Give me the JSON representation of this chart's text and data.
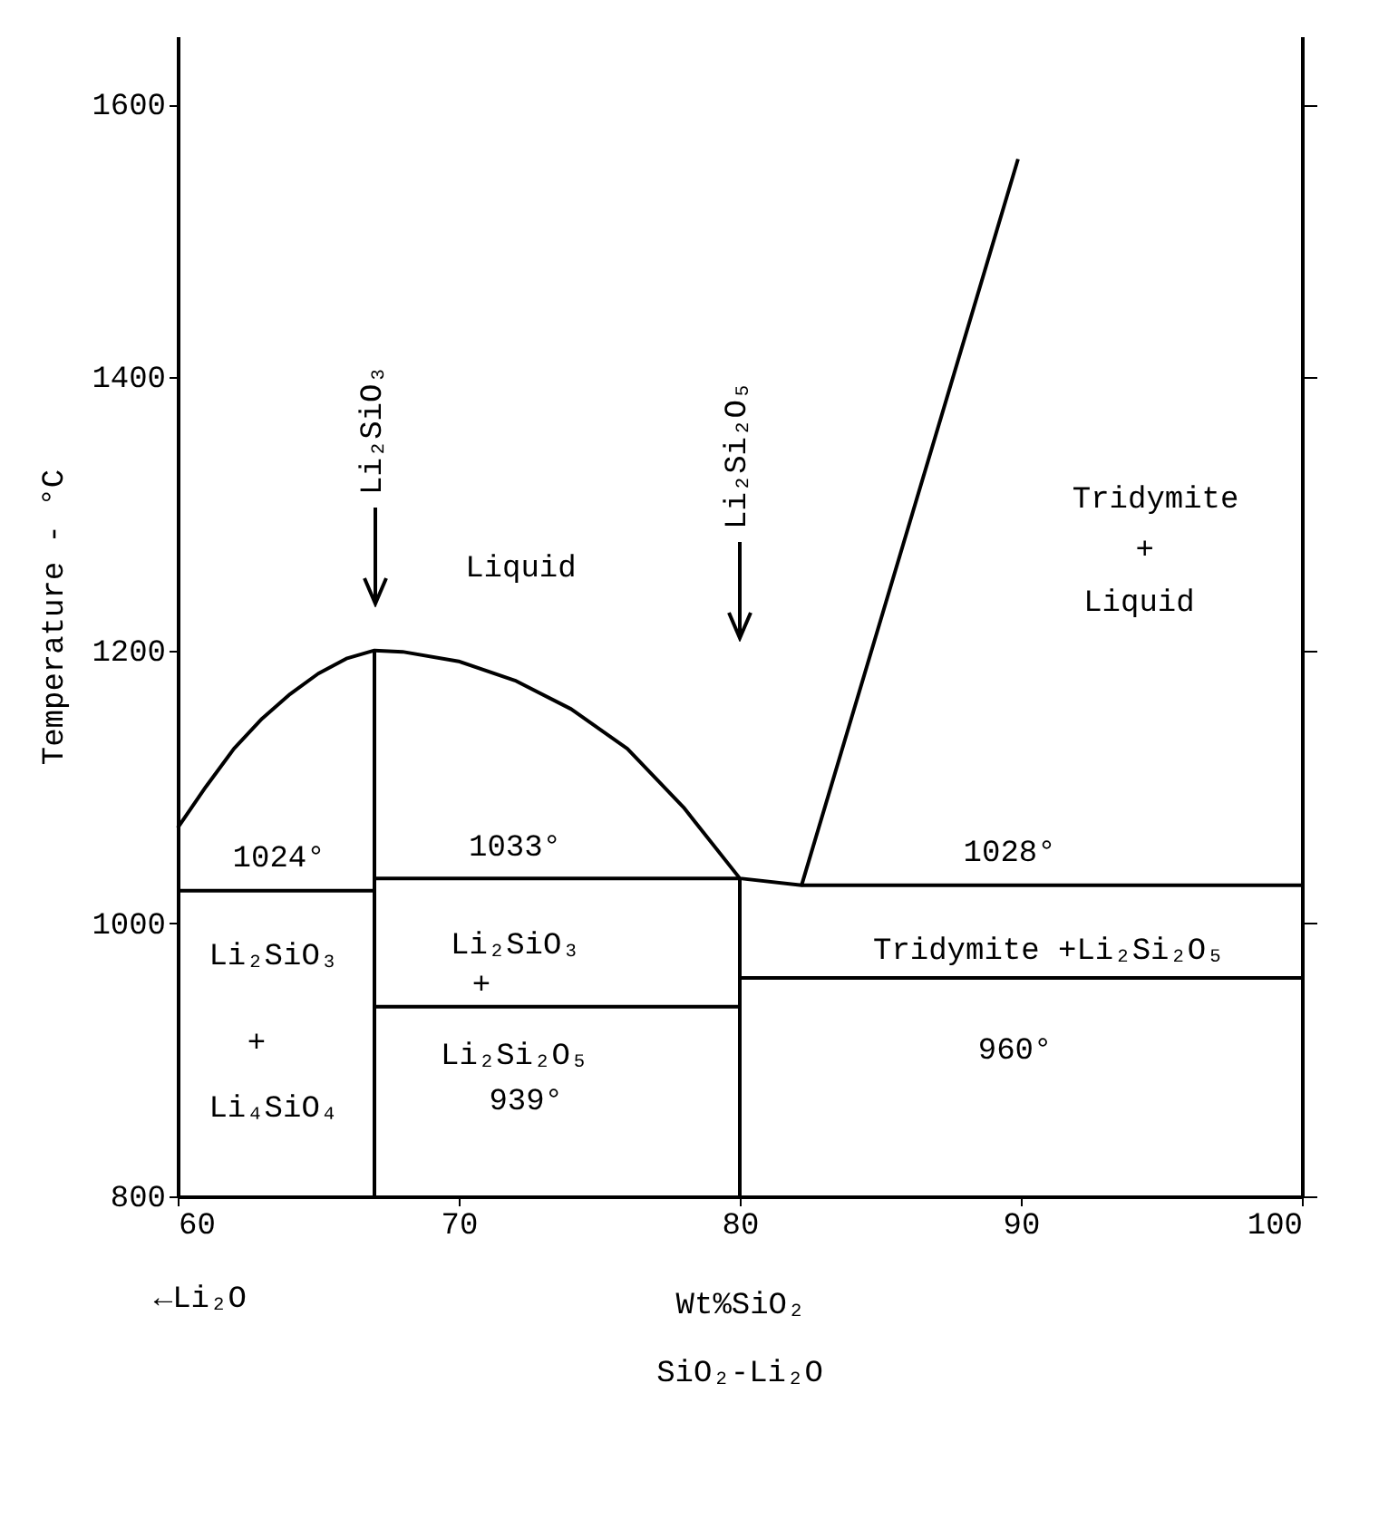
{
  "chart_data": {
    "type": "line",
    "title": "SiO₂-Li₂O",
    "xlabel": "Wt%SiO₂",
    "ylabel": "Temperature - °C",
    "xlim": [
      60,
      100
    ],
    "xticks": [
      60,
      70,
      80,
      90,
      100
    ],
    "ylim": [
      800,
      1650
    ],
    "yticks": [
      800,
      1000,
      1200,
      1400,
      1600
    ],
    "series": [
      {
        "color": "#000000",
        "x": [
          60,
          61,
          62,
          63,
          64,
          65,
          66,
          67,
          68,
          70,
          72,
          74,
          76,
          78,
          80,
          82.2,
          89.9
        ],
        "values": [
          1070,
          1100,
          1128,
          1150,
          1168,
          1183,
          1194,
          1200,
          1199,
          1192,
          1178,
          1157,
          1128,
          1085,
          1033,
          1028,
          1560
        ]
      },
      {
        "color": "#000000",
        "x": [
          60,
          67
        ],
        "values": [
          1024,
          1024
        ]
      },
      {
        "color": "#000000",
        "x": [
          67,
          80
        ],
        "values": [
          1033,
          1033
        ]
      },
      {
        "color": "#000000",
        "x": [
          82.2,
          100
        ],
        "values": [
          1028,
          1028
        ]
      },
      {
        "color": "#000000",
        "x": [
          67,
          80
        ],
        "values": [
          939,
          939
        ]
      },
      {
        "color": "#000000",
        "x": [
          80,
          100
        ],
        "values": [
          960,
          960
        ]
      },
      {
        "color": "#000000",
        "x": [
          67,
          67
        ],
        "values": [
          800,
          1200
        ]
      },
      {
        "color": "#000000",
        "x": [
          80,
          80
        ],
        "values": [
          800,
          1033
        ]
      }
    ],
    "annotations": [
      "Li₂SiO₃",
      "Li₂Si₂O₅",
      "Liquid",
      "Tridymite",
      "+",
      "Liquid",
      "1024°",
      "1033°",
      "1028°",
      "Li₂SiO₃",
      "+",
      "Li₄SiO₄",
      "Li₂SiO₃",
      "+",
      "Li₂Si₂O₅",
      "939°",
      "Tridymite +Li₂Si₂O₅",
      "960°",
      "←Li₂O"
    ]
  }
}
